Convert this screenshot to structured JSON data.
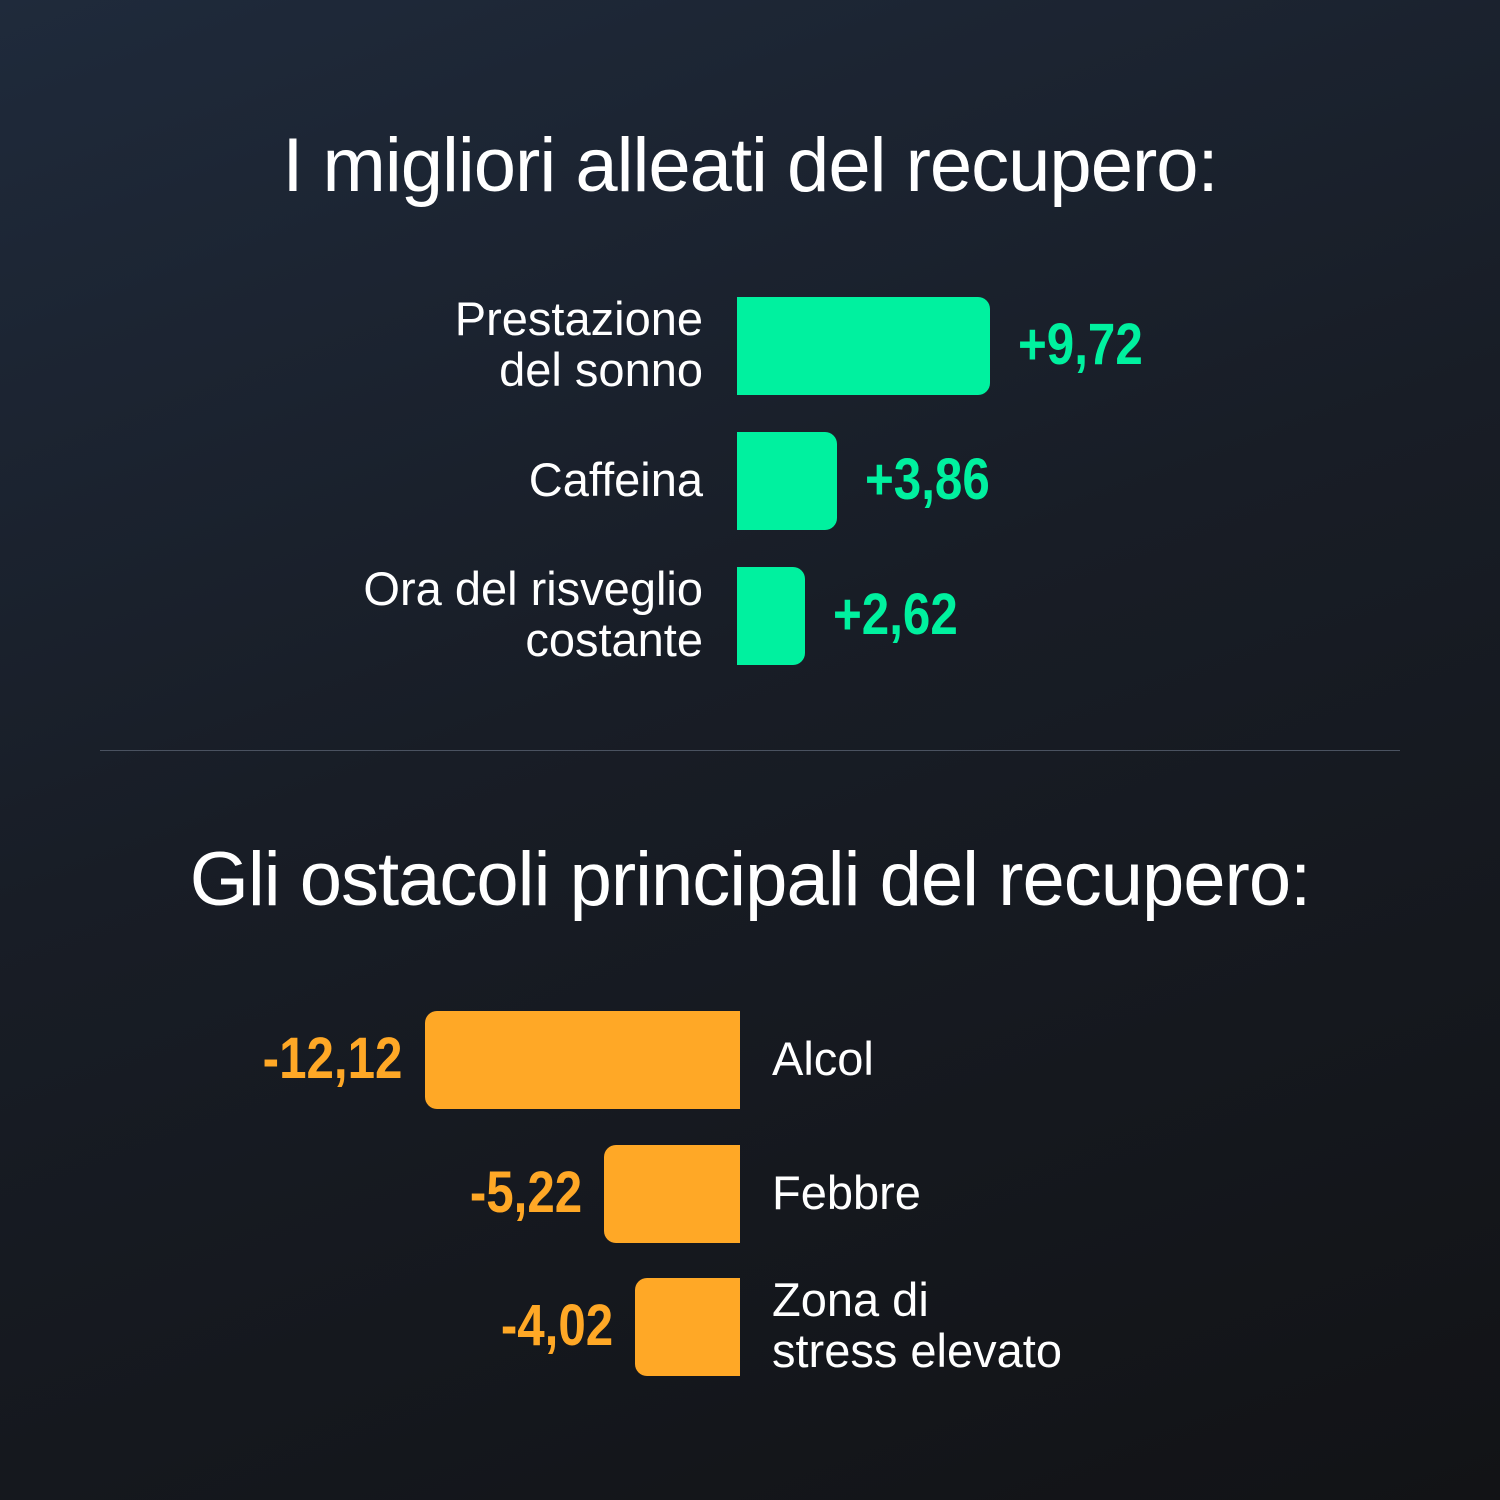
{
  "chart_data": [
    {
      "type": "bar",
      "orientation": "horizontal",
      "title": "I migliori alleati del recupero:",
      "color": "#00F19F",
      "categories": [
        "Prestazione del sonno",
        "Caffeina",
        "Ora del risveglio costante"
      ],
      "category_lines": [
        [
          "Prestazione",
          "del sonno"
        ],
        [
          "Caffeina"
        ],
        [
          "Ora del risveglio",
          "costante"
        ]
      ],
      "values": [
        9.72,
        3.86,
        2.62
      ],
      "value_labels": [
        "+9,72",
        "+3,86",
        "+2,62"
      ]
    },
    {
      "type": "bar",
      "orientation": "horizontal",
      "title": "Gli ostacoli principali del recupero:",
      "color": "#FFA826",
      "categories": [
        "Alcol",
        "Febbre",
        "Zona di stress elevato"
      ],
      "category_lines": [
        [
          "Alcol"
        ],
        [
          "Febbre"
        ],
        [
          "Zona di",
          "stress elevato"
        ]
      ],
      "values": [
        -12.12,
        -5.22,
        -4.02
      ],
      "value_labels": [
        "-12,12",
        "-5,22",
        "-4,02"
      ]
    }
  ]
}
